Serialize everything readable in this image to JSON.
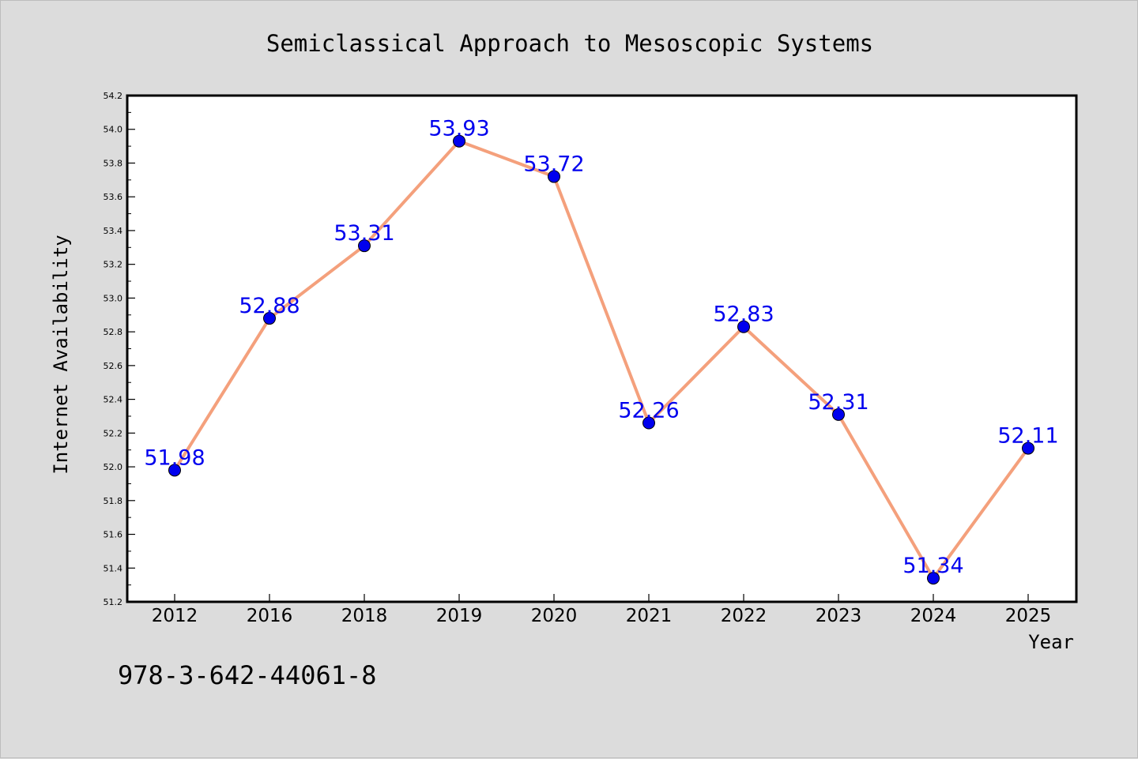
{
  "figure": {
    "title": "Semiclassical Approach to Mesoscopic Systems",
    "footer_text": "978-3-642-44061-8"
  },
  "chart_data": {
    "type": "line",
    "title": "Semiclassical Approach to Mesoscopic Systems",
    "xlabel": "Year",
    "ylabel": "Internet Availability",
    "categories": [
      "2012",
      "2016",
      "2018",
      "2019",
      "2020",
      "2021",
      "2022",
      "2023",
      "2024",
      "2025"
    ],
    "series": [
      {
        "values": [
          51.98,
          52.88,
          53.31,
          53.93,
          53.72,
          52.26,
          52.83,
          52.31,
          51.34,
          52.11
        ],
        "labels": [
          "51.98",
          "52.88",
          "53.31",
          "53.93",
          "53.72",
          "52.26",
          "52.83",
          "52.31",
          "51.34",
          "52.11"
        ],
        "line_color": "#f4a07c",
        "marker_color": "#0000ee"
      }
    ],
    "ylim": [
      51.2,
      54.2
    ],
    "yticks": [
      "51.2",
      "51.4",
      "51.6",
      "51.8",
      "52.0",
      "52.2",
      "52.4",
      "52.6",
      "52.8",
      "53.0",
      "53.2",
      "53.4",
      "53.6",
      "53.8",
      "54.0",
      "54.2"
    ],
    "grid": false,
    "legend": "none",
    "colors": {
      "background": "#dcdcdc",
      "plot_background": "#ffffff",
      "axis": "#000000",
      "data_label": "#0000ee"
    }
  }
}
